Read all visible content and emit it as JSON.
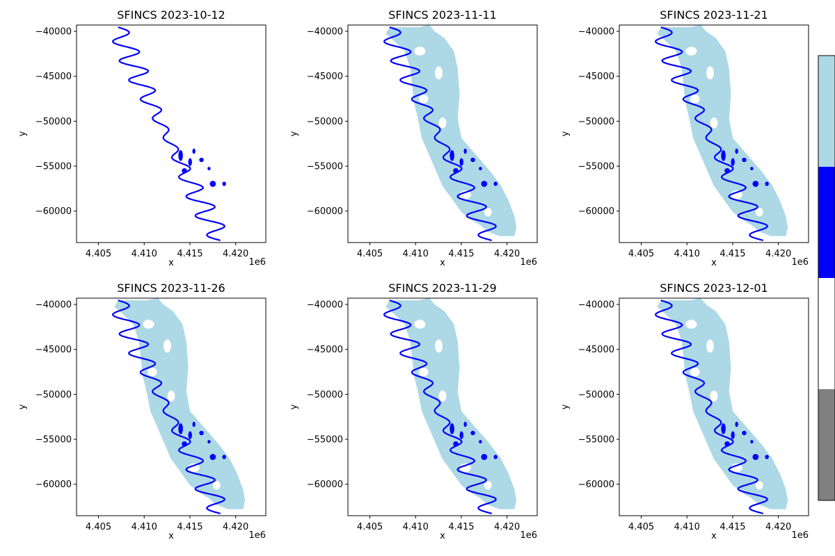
{
  "figure": {
    "colors": {
      "flood_extent": "#add8e6",
      "permanent_water": "#0000ff",
      "dry": "#ffffff",
      "no_data": "#808080"
    }
  },
  "chart_data": [
    {
      "type": "heatmap",
      "title": "SFINCS 2023-10-12",
      "xlabel": "x",
      "ylabel": "y",
      "x_offset_label": "1e6",
      "x_ticks": [
        4.405,
        4.41,
        4.415,
        4.42
      ],
      "x_tick_labels": [
        "4.405",
        "4.410",
        "4.415",
        "4.420"
      ],
      "y_ticks": [
        -40000,
        -45000,
        -50000,
        -55000,
        -60000
      ],
      "y_tick_labels": [
        "−40000",
        "−45000",
        "−50000",
        "−55000",
        "−60000"
      ],
      "xlim": [
        4.4026,
        4.4233
      ],
      "ylim": [
        -63500,
        -39300
      ],
      "flood_extent": false,
      "permanent_water": true
    },
    {
      "type": "heatmap",
      "title": "SFINCS 2023-11-11",
      "xlabel": "x",
      "ylabel": "y",
      "x_offset_label": "1e6",
      "x_ticks": [
        4.405,
        4.41,
        4.415,
        4.42
      ],
      "x_tick_labels": [
        "4.405",
        "4.410",
        "4.415",
        "4.420"
      ],
      "y_ticks": [
        -40000,
        -45000,
        -50000,
        -55000,
        -60000
      ],
      "y_tick_labels": [
        "−40000",
        "−45000",
        "−50000",
        "−55000",
        "−60000"
      ],
      "xlim": [
        4.4026,
        4.4233
      ],
      "ylim": [
        -63500,
        -39300
      ],
      "flood_extent": true,
      "permanent_water": true
    },
    {
      "type": "heatmap",
      "title": "SFINCS 2023-11-21",
      "xlabel": "x",
      "ylabel": "y",
      "x_offset_label": "1e6",
      "x_ticks": [
        4.405,
        4.41,
        4.415,
        4.42
      ],
      "x_tick_labels": [
        "4.405",
        "4.410",
        "4.415",
        "4.420"
      ],
      "y_ticks": [
        -40000,
        -45000,
        -50000,
        -55000,
        -60000
      ],
      "y_tick_labels": [
        "−40000",
        "−45000",
        "−50000",
        "−55000",
        "−60000"
      ],
      "xlim": [
        4.4026,
        4.4233
      ],
      "ylim": [
        -63500,
        -39300
      ],
      "flood_extent": true,
      "permanent_water": true
    },
    {
      "type": "heatmap",
      "title": "SFINCS 2023-11-26",
      "xlabel": "x",
      "ylabel": "y",
      "x_offset_label": "1e6",
      "x_ticks": [
        4.405,
        4.41,
        4.415,
        4.42
      ],
      "x_tick_labels": [
        "4.405",
        "4.410",
        "4.415",
        "4.420"
      ],
      "y_ticks": [
        -40000,
        -45000,
        -50000,
        -55000,
        -60000
      ],
      "y_tick_labels": [
        "−40000",
        "−45000",
        "−50000",
        "−55000",
        "−60000"
      ],
      "xlim": [
        4.4026,
        4.4233
      ],
      "ylim": [
        -63500,
        -39300
      ],
      "flood_extent": true,
      "permanent_water": true
    },
    {
      "type": "heatmap",
      "title": "SFINCS 2023-11-29",
      "xlabel": "x",
      "ylabel": "y",
      "x_offset_label": "1e6",
      "x_ticks": [
        4.405,
        4.41,
        4.415,
        4.42
      ],
      "x_tick_labels": [
        "4.405",
        "4.410",
        "4.415",
        "4.420"
      ],
      "y_ticks": [
        -40000,
        -45000,
        -50000,
        -55000,
        -60000
      ],
      "y_tick_labels": [
        "−40000",
        "−45000",
        "−50000",
        "−55000",
        "−60000"
      ],
      "xlim": [
        4.4026,
        4.4233
      ],
      "ylim": [
        -63500,
        -39300
      ],
      "flood_extent": true,
      "permanent_water": true
    },
    {
      "type": "heatmap",
      "title": "SFINCS 2023-12-01",
      "xlabel": "x",
      "ylabel": "y",
      "x_offset_label": "1e6",
      "x_ticks": [
        4.405,
        4.41,
        4.415,
        4.42
      ],
      "x_tick_labels": [
        "4.405",
        "4.410",
        "4.415",
        "4.420"
      ],
      "y_ticks": [
        -40000,
        -45000,
        -50000,
        -55000,
        -60000
      ],
      "y_tick_labels": [
        "−40000",
        "−45000",
        "−50000",
        "−55000",
        "−60000"
      ],
      "xlim": [
        4.4026,
        4.4233
      ],
      "ylim": [
        -63500,
        -39300
      ],
      "flood_extent": true,
      "permanent_water": true
    }
  ],
  "colorbar": {
    "segments": [
      "#add8e6",
      "#0000ff",
      "#ffffff",
      "#808080"
    ]
  }
}
